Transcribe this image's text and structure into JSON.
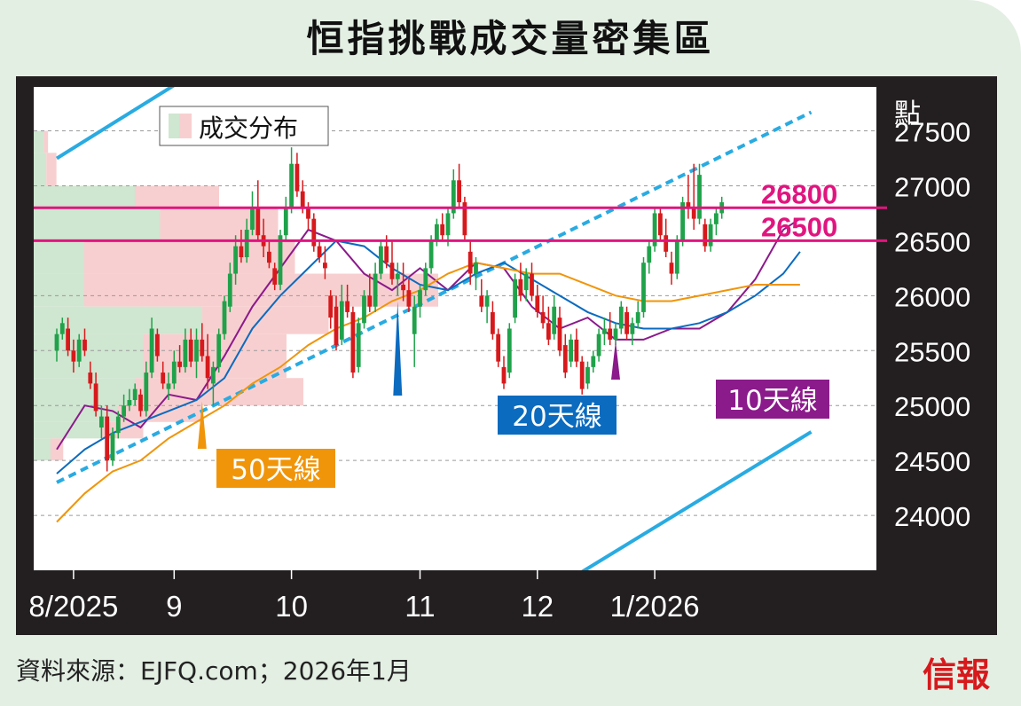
{
  "title": "恒指挑戰成交量密集區",
  "source": "資料來源：EJFQ.com；2026年1月",
  "logo": "信報",
  "chart_data": {
    "type": "candlestick",
    "unit_label": "點",
    "y_ticks": [
      24000,
      24500,
      25000,
      25500,
      26000,
      26500,
      27000,
      27500
    ],
    "x_ticks": [
      {
        "label": "8/2025",
        "day": 3
      },
      {
        "label": "9",
        "day": 21
      },
      {
        "label": "10",
        "day": 42
      },
      {
        "label": "11",
        "day": 65
      },
      {
        "label": "12",
        "day": 86
      },
      {
        "label": "1/2026",
        "day": 107
      }
    ],
    "ylim": [
      23500,
      27900
    ],
    "xlim": [
      0,
      135
    ],
    "legend": {
      "label": "成交分布",
      "position": "top-left"
    },
    "hlines": [
      {
        "label": "26800",
        "value": 26800,
        "color": "#e0157f"
      },
      {
        "label": "26500",
        "value": 26500,
        "color": "#e0157f"
      }
    ],
    "trendlines": [
      {
        "name": "support",
        "style": "dotted",
        "color": "#29abe2",
        "from": [
          0,
          24300
        ],
        "to": [
          135,
          27670
        ]
      },
      {
        "name": "upper-channel",
        "style": "solid",
        "color": "#29abe2",
        "from": [
          0,
          27250
        ],
        "to": [
          30,
          28200
        ]
      },
      {
        "name": "lower-channel",
        "style": "solid",
        "color": "#29abe2",
        "from": [
          88,
          23300
        ],
        "to": [
          135,
          24760
        ]
      }
    ],
    "moving_averages": [
      {
        "name": "10天線",
        "color": "#8b1a8b",
        "label_bg": "#8b1a8b",
        "points": [
          [
            0,
            24600
          ],
          [
            5,
            25000
          ],
          [
            10,
            24950
          ],
          [
            15,
            24800
          ],
          [
            20,
            25100
          ],
          [
            25,
            25050
          ],
          [
            30,
            25450
          ],
          [
            35,
            25900
          ],
          [
            40,
            26250
          ],
          [
            45,
            26600
          ],
          [
            50,
            26500
          ],
          [
            55,
            26200
          ],
          [
            60,
            26050
          ],
          [
            65,
            26250
          ],
          [
            70,
            26050
          ],
          [
            75,
            26300
          ],
          [
            80,
            26250
          ],
          [
            85,
            25900
          ],
          [
            90,
            25700
          ],
          [
            95,
            25800
          ],
          [
            100,
            25600
          ],
          [
            105,
            25600
          ],
          [
            110,
            25700
          ],
          [
            115,
            25700
          ],
          [
            120,
            25850
          ],
          [
            125,
            26150
          ],
          [
            130,
            26600
          ],
          [
            133,
            26700
          ]
        ]
      },
      {
        "name": "20天線",
        "color": "#0b6bbf",
        "label_bg": "#0b6bbf",
        "points": [
          [
            0,
            24380
          ],
          [
            5,
            24600
          ],
          [
            10,
            24750
          ],
          [
            15,
            24850
          ],
          [
            20,
            24950
          ],
          [
            25,
            25050
          ],
          [
            30,
            25250
          ],
          [
            35,
            25700
          ],
          [
            40,
            26000
          ],
          [
            45,
            26250
          ],
          [
            50,
            26500
          ],
          [
            55,
            26450
          ],
          [
            60,
            26250
          ],
          [
            65,
            26100
          ],
          [
            70,
            26050
          ],
          [
            75,
            26200
          ],
          [
            80,
            26300
          ],
          [
            85,
            26150
          ],
          [
            90,
            26000
          ],
          [
            95,
            25850
          ],
          [
            100,
            25750
          ],
          [
            105,
            25700
          ],
          [
            110,
            25700
          ],
          [
            115,
            25750
          ],
          [
            120,
            25850
          ],
          [
            125,
            26000
          ],
          [
            130,
            26200
          ],
          [
            133,
            26400
          ]
        ]
      },
      {
        "name": "50天線",
        "color": "#f0950a",
        "label_bg": "#f0950a",
        "points": [
          [
            0,
            23940
          ],
          [
            5,
            24200
          ],
          [
            10,
            24400
          ],
          [
            15,
            24500
          ],
          [
            20,
            24700
          ],
          [
            25,
            24850
          ],
          [
            30,
            25000
          ],
          [
            35,
            25200
          ],
          [
            40,
            25350
          ],
          [
            45,
            25550
          ],
          [
            50,
            25700
          ],
          [
            55,
            25800
          ],
          [
            60,
            25950
          ],
          [
            65,
            26050
          ],
          [
            70,
            26200
          ],
          [
            75,
            26300
          ],
          [
            80,
            26250
          ],
          [
            85,
            26200
          ],
          [
            90,
            26200
          ],
          [
            95,
            26100
          ],
          [
            100,
            26000
          ],
          [
            105,
            25950
          ],
          [
            110,
            25950
          ],
          [
            115,
            26000
          ],
          [
            120,
            26050
          ],
          [
            125,
            26100
          ],
          [
            130,
            26100
          ],
          [
            133,
            26100
          ]
        ]
      }
    ],
    "volume_profile": [
      {
        "low": 27300,
        "high": 27500,
        "up": 0.012,
        "down": 0.005
      },
      {
        "low": 27000,
        "high": 27300,
        "up": 0.015,
        "down": 0.012
      },
      {
        "low": 26800,
        "high": 27000,
        "up": 0.12,
        "down": 0.1
      },
      {
        "low": 26500,
        "high": 26800,
        "up": 0.15,
        "down": 0.14
      },
      {
        "low": 26200,
        "high": 26500,
        "up": 0.06,
        "down": 0.25
      },
      {
        "low": 25900,
        "high": 26200,
        "up": 0.06,
        "down": 0.42
      },
      {
        "low": 25650,
        "high": 25900,
        "up": 0.2,
        "down": 0.15
      },
      {
        "low": 25250,
        "high": 25650,
        "up": 0.13,
        "down": 0.17
      },
      {
        "low": 25000,
        "high": 25250,
        "up": 0.12,
        "down": 0.2
      },
      {
        "low": 24850,
        "high": 25000,
        "up": 0.1,
        "down": 0.1
      },
      {
        "low": 24700,
        "high": 24850,
        "up": 0.08,
        "down": 0.05
      },
      {
        "low": 24500,
        "high": 24700,
        "up": 0.02,
        "down": 0.015
      }
    ],
    "candles": [
      [
        0,
        25500,
        25700,
        25400,
        25650
      ],
      [
        1,
        25650,
        25800,
        25600,
        25750
      ],
      [
        2,
        25700,
        25800,
        25450,
        25500
      ],
      [
        3,
        25500,
        25600,
        25300,
        25400
      ],
      [
        4,
        25400,
        25650,
        25350,
        25600
      ],
      [
        5,
        25600,
        25700,
        25450,
        25500
      ],
      [
        6,
        25300,
        25400,
        25150,
        25200
      ],
      [
        7,
        25200,
        25300,
        24900,
        24950
      ],
      [
        8,
        24800,
        25000,
        24700,
        24900
      ],
      [
        9,
        24900,
        25000,
        24400,
        24500
      ],
      [
        10,
        24500,
        24800,
        24450,
        24750
      ],
      [
        11,
        24750,
        24950,
        24700,
        24900
      ],
      [
        12,
        24900,
        25100,
        24850,
        25000
      ],
      [
        13,
        25000,
        25150,
        24950,
        25050
      ],
      [
        14,
        25050,
        25200,
        25000,
        25150
      ],
      [
        15,
        25100,
        25150,
        24900,
        24950
      ],
      [
        16,
        24950,
        25400,
        24900,
        25300
      ],
      [
        17,
        25300,
        25800,
        25250,
        25700
      ],
      [
        18,
        25650,
        25700,
        25400,
        25450
      ],
      [
        19,
        25300,
        25400,
        25150,
        25200
      ],
      [
        20,
        25150,
        25300,
        25050,
        25200
      ],
      [
        21,
        25200,
        25500,
        25150,
        25400
      ],
      [
        22,
        25400,
        25550,
        25300,
        25350
      ],
      [
        23,
        25350,
        25700,
        25300,
        25600
      ],
      [
        24,
        25600,
        25700,
        25350,
        25400
      ],
      [
        25,
        25400,
        25700,
        25250,
        25600
      ],
      [
        26,
        25600,
        25750,
        25400,
        25450
      ],
      [
        27,
        25450,
        25650,
        25150,
        25250
      ],
      [
        28,
        25200,
        25400,
        25000,
        25350
      ],
      [
        29,
        25350,
        25700,
        25300,
        25650
      ],
      [
        30,
        25650,
        26000,
        25600,
        25950
      ],
      [
        31,
        25900,
        26300,
        25850,
        26200
      ],
      [
        32,
        26200,
        26550,
        26100,
        26450
      ],
      [
        33,
        26450,
        26600,
        26300,
        26350
      ],
      [
        34,
        26350,
        26700,
        26300,
        26600
      ],
      [
        35,
        26600,
        26950,
        26550,
        26800
      ],
      [
        36,
        26800,
        27050,
        26500,
        26550
      ],
      [
        37,
        26550,
        26700,
        26350,
        26450
      ],
      [
        38,
        26400,
        26500,
        26250,
        26300
      ],
      [
        39,
        26250,
        26300,
        26050,
        26100
      ],
      [
        40,
        26100,
        26600,
        26050,
        26550
      ],
      [
        41,
        26550,
        26900,
        26500,
        26800
      ],
      [
        42,
        26800,
        27350,
        26750,
        27200
      ],
      [
        43,
        27200,
        27300,
        26900,
        26950
      ],
      [
        44,
        26950,
        27050,
        26750,
        26800
      ],
      [
        45,
        26800,
        26850,
        26600,
        26700
      ],
      [
        46,
        26700,
        26750,
        26400,
        26450
      ],
      [
        47,
        26450,
        26500,
        26300,
        26350
      ],
      [
        48,
        26300,
        26450,
        26150,
        26250
      ],
      [
        49,
        26000,
        26050,
        25700,
        25800
      ],
      [
        50,
        25900,
        26000,
        25500,
        25550
      ],
      [
        51,
        25600,
        26100,
        25550,
        25950
      ],
      [
        52,
        25950,
        26100,
        25800,
        25850
      ],
      [
        53,
        25850,
        25900,
        25250,
        25300
      ],
      [
        54,
        25350,
        25800,
        25300,
        25750
      ],
      [
        55,
        25750,
        26050,
        25700,
        26000
      ],
      [
        56,
        26000,
        26200,
        25850,
        25900
      ],
      [
        57,
        25900,
        26300,
        25850,
        26200
      ],
      [
        58,
        26200,
        26500,
        26150,
        26450
      ],
      [
        59,
        26450,
        26550,
        26250,
        26300
      ],
      [
        60,
        26300,
        26500,
        26100,
        26150
      ],
      [
        61,
        26150,
        26300,
        26000,
        26200
      ],
      [
        62,
        26100,
        26300,
        25950,
        26050
      ],
      [
        63,
        26050,
        26150,
        25850,
        25900
      ],
      [
        64,
        25650,
        26000,
        25350,
        25900
      ],
      [
        65,
        25900,
        26100,
        25800,
        26050
      ],
      [
        66,
        26050,
        26300,
        26000,
        26250
      ],
      [
        67,
        26250,
        26550,
        26200,
        26500
      ],
      [
        68,
        26500,
        26700,
        26450,
        26650
      ],
      [
        69,
        26650,
        26750,
        26500,
        26550
      ],
      [
        70,
        26550,
        26800,
        26450,
        26750
      ],
      [
        71,
        26750,
        27150,
        26700,
        27050
      ],
      [
        72,
        27050,
        27200,
        26800,
        26850
      ],
      [
        73,
        26850,
        26900,
        26500,
        26550
      ],
      [
        74,
        26400,
        26500,
        26100,
        26200
      ],
      [
        75,
        26200,
        26350,
        26050,
        26300
      ],
      [
        76,
        26000,
        26150,
        25850,
        25900
      ],
      [
        77,
        25900,
        26050,
        25750,
        26000
      ],
      [
        78,
        25850,
        25950,
        25600,
        25650
      ],
      [
        79,
        25650,
        25700,
        25350,
        25400
      ],
      [
        80,
        25350,
        25450,
        25150,
        25200
      ],
      [
        81,
        25300,
        25750,
        25250,
        25700
      ],
      [
        82,
        25800,
        26200,
        25750,
        26150
      ],
      [
        83,
        26150,
        26300,
        25950,
        26000
      ],
      [
        84,
        26050,
        26250,
        25950,
        26200
      ],
      [
        85,
        26200,
        26300,
        25950,
        26000
      ],
      [
        86,
        26000,
        26100,
        25800,
        25850
      ],
      [
        87,
        25850,
        26000,
        25700,
        25750
      ],
      [
        88,
        25750,
        25900,
        25550,
        25600
      ],
      [
        89,
        25650,
        26000,
        25600,
        25900
      ],
      [
        90,
        25800,
        25900,
        25450,
        25500
      ],
      [
        91,
        25550,
        25650,
        25250,
        25300
      ],
      [
        92,
        25400,
        25650,
        25350,
        25600
      ],
      [
        93,
        25600,
        25700,
        25350,
        25400
      ],
      [
        94,
        25400,
        25450,
        25100,
        25150
      ],
      [
        95,
        25200,
        25400,
        25150,
        25350
      ],
      [
        96,
        25350,
        25500,
        25300,
        25450
      ],
      [
        97,
        25450,
        25700,
        25400,
        25650
      ],
      [
        98,
        25650,
        25800,
        25550,
        25700
      ],
      [
        99,
        25700,
        25850,
        25550,
        25600
      ],
      [
        100,
        25600,
        25750,
        25550,
        25700
      ],
      [
        101,
        25700,
        25950,
        25650,
        25900
      ],
      [
        102,
        25850,
        25900,
        25600,
        25650
      ],
      [
        103,
        25650,
        25800,
        25550,
        25750
      ],
      [
        104,
        25750,
        25950,
        25700,
        25850
      ],
      [
        105,
        25850,
        26350,
        25800,
        26300
      ],
      [
        106,
        26300,
        26500,
        26200,
        26450
      ],
      [
        107,
        26450,
        26800,
        26400,
        26750
      ],
      [
        108,
        26750,
        26800,
        26500,
        26550
      ],
      [
        109,
        26550,
        26700,
        26350,
        26400
      ],
      [
        110,
        26300,
        26400,
        26100,
        26200
      ],
      [
        111,
        26200,
        26550,
        26150,
        26500
      ],
      [
        112,
        26500,
        26900,
        26450,
        26850
      ],
      [
        113,
        26850,
        27100,
        26700,
        26800
      ],
      [
        114,
        26800,
        27200,
        26600,
        26700
      ],
      [
        115,
        26700,
        27200,
        26650,
        27100
      ],
      [
        116,
        26650,
        26700,
        26400,
        26450
      ],
      [
        117,
        26450,
        26700,
        26400,
        26650
      ],
      [
        118,
        26650,
        26800,
        26550,
        26750
      ],
      [
        119,
        26750,
        26900,
        26700,
        26850
      ]
    ]
  }
}
